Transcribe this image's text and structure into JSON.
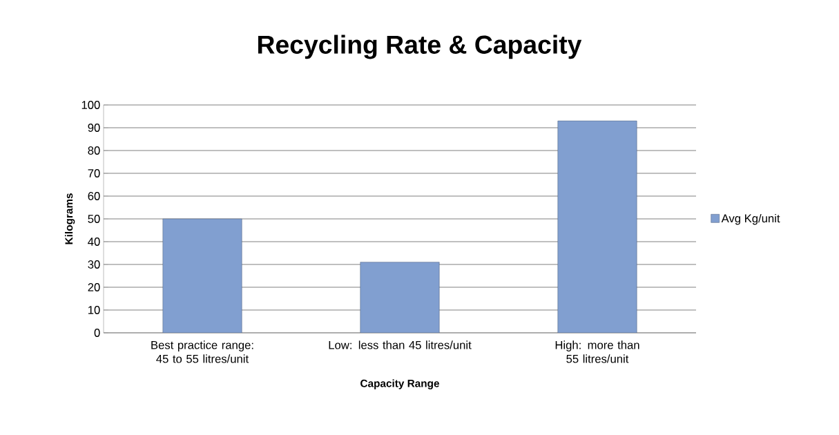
{
  "chart_data": {
    "type": "bar",
    "title": "Recycling Rate & Capacity",
    "xlabel": "Capacity Range",
    "ylabel": "Kilograms",
    "categories": [
      "Best practice range: 45 to 55 litres/unit",
      "Low: less than 45 litres/unit",
      "High: more than 55 litres/unit"
    ],
    "series": [
      {
        "name": "Avg Kg/unit",
        "color": "#819fd0",
        "values": [
          50,
          31,
          93
        ]
      }
    ],
    "ylim": [
      0,
      100
    ],
    "yticks": [
      0,
      10,
      20,
      30,
      40,
      50,
      60,
      70,
      80,
      90,
      100
    ],
    "grid": "y",
    "legend": "right"
  }
}
